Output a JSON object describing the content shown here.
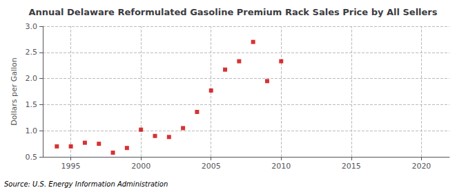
{
  "chart_data": {
    "type": "scatter",
    "title": "Annual Delaware Reformulated Gasoline Premium Rack Sales Price by All Sellers",
    "y_label": "Dollars per Gallon",
    "annotations": [
      "Source: U.S. Energy Information Administration"
    ],
    "x": [
      1994,
      1995,
      1996,
      1997,
      1998,
      1999,
      2000,
      2001,
      2002,
      2003,
      2004,
      2005,
      2006,
      2007,
      2008,
      2009,
      2010
    ],
    "values": [
      0.7,
      0.7,
      0.77,
      0.75,
      0.58,
      0.67,
      1.02,
      0.9,
      0.88,
      1.05,
      1.36,
      1.77,
      2.17,
      2.33,
      2.7,
      1.95,
      2.33
    ],
    "color": "#cc0000",
    "marker": "square",
    "xlim": [
      1993,
      2022
    ],
    "ylim": [
      0.5,
      3.0
    ],
    "xticks": [
      1995,
      2000,
      2005,
      2010,
      2015,
      2020
    ],
    "yticks": [
      0.5,
      {
        "value": 1.0,
        "label": "1.0"
      },
      1.5,
      {
        "value": 2.0,
        "label": "2.0"
      },
      2.5,
      {
        "value": 3.0,
        "label": "3.0"
      }
    ],
    "grid": true
  }
}
